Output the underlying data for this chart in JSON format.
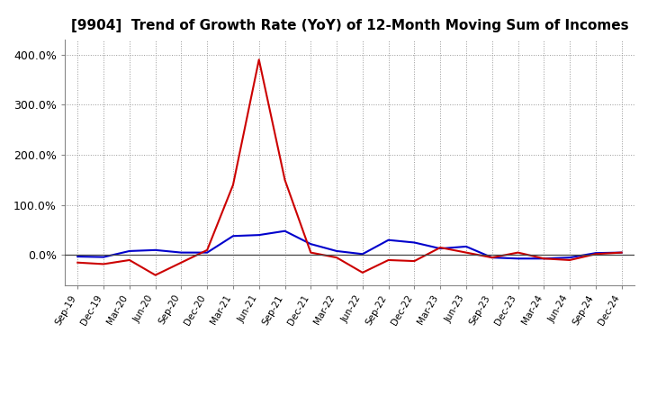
{
  "title": "[9904]  Trend of Growth Rate (YoY) of 12-Month Moving Sum of Incomes",
  "x_labels": [
    "Sep-19",
    "Dec-19",
    "Mar-20",
    "Jun-20",
    "Sep-20",
    "Dec-20",
    "Mar-21",
    "Jun-21",
    "Sep-21",
    "Dec-21",
    "Mar-22",
    "Jun-22",
    "Sep-22",
    "Dec-22",
    "Mar-23",
    "Jun-23",
    "Sep-23",
    "Dec-23",
    "Mar-24",
    "Jun-24",
    "Sep-24",
    "Dec-24"
  ],
  "ordinary_income": [
    -3,
    -4,
    8,
    10,
    5,
    5,
    38,
    40,
    48,
    22,
    8,
    2,
    30,
    25,
    13,
    17,
    -5,
    -7,
    -7,
    -5,
    4,
    5
  ],
  "net_income": [
    -15,
    -18,
    -10,
    -40,
    -15,
    10,
    140,
    390,
    150,
    5,
    -5,
    -35,
    -10,
    -12,
    15,
    5,
    -5,
    5,
    -7,
    -10,
    2,
    5
  ],
  "ordinary_color": "#0000cc",
  "net_color": "#cc0000",
  "ylim_min": -60,
  "ylim_max": 430,
  "yticks": [
    0,
    100,
    200,
    300,
    400
  ],
  "ytick_labels": [
    "0.0%",
    "100.0%",
    "200.0%",
    "300.0%",
    "400.0%"
  ],
  "bg_color": "#ffffff",
  "grid_color": "#999999",
  "title_fontsize": 11
}
